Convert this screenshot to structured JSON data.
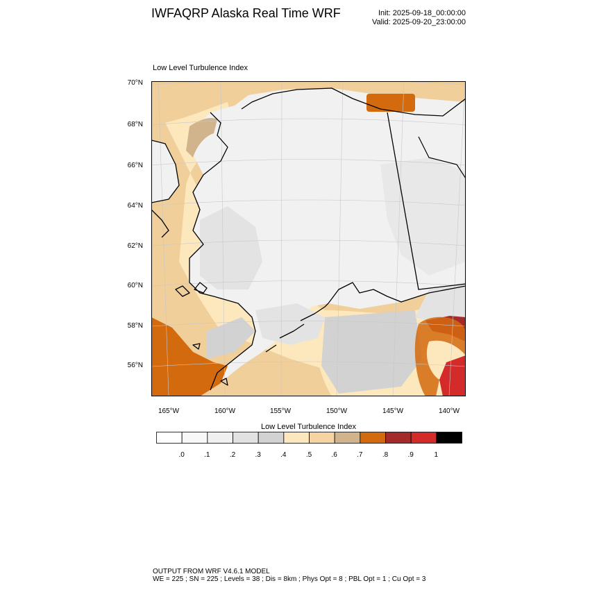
{
  "header": {
    "title": "IWFAQRP Alaska Real Time WRF",
    "init": "Init: 2025-09-18_00:00:00",
    "valid": "Valid: 2025-09-20_23:00:00"
  },
  "map": {
    "subtitle": "Low Level Turbulence Index",
    "lat_labels": [
      "70°N",
      "68°N",
      "66°N",
      "64°N",
      "62°N",
      "60°N",
      "58°N",
      "56°N"
    ],
    "lon_labels": [
      "165°W",
      "160°W",
      "155°W",
      "150°W",
      "145°W",
      "140°W"
    ],
    "colors": {
      "ocean": "#f0cf9a",
      "land_low": "#f1f1f1",
      "land_mid": "#e3e3e3",
      "land_high": "#d2d2d2",
      "orange": "#d46a0e",
      "red": "#d32a2a",
      "darkred": "#a52a2a",
      "coast": "#000000"
    }
  },
  "colorbar": {
    "title": "Low Level Turbulence Index",
    "colors": [
      "#ffffff",
      "#f8f8f8",
      "#f0f0f0",
      "#e2e2e2",
      "#d2d2d2",
      "#fde8bd",
      "#f5d3a2",
      "#d2b48c",
      "#d46a0e",
      "#a52a2a",
      "#d32a2a",
      "#000000"
    ],
    "labels": [
      ".0",
      ".1",
      ".2",
      ".3",
      ".4",
      ".5",
      ".6",
      ".7",
      ".8",
      ".9",
      "1"
    ]
  },
  "footer": {
    "line1": "OUTPUT FROM WRF V4.6.1 MODEL",
    "line2": "WE = 225 ; SN = 225 ; Levels = 38 ; Dis = 8km ; Phys Opt = 8 ; PBL Opt = 1 ; Cu Opt = 3"
  }
}
